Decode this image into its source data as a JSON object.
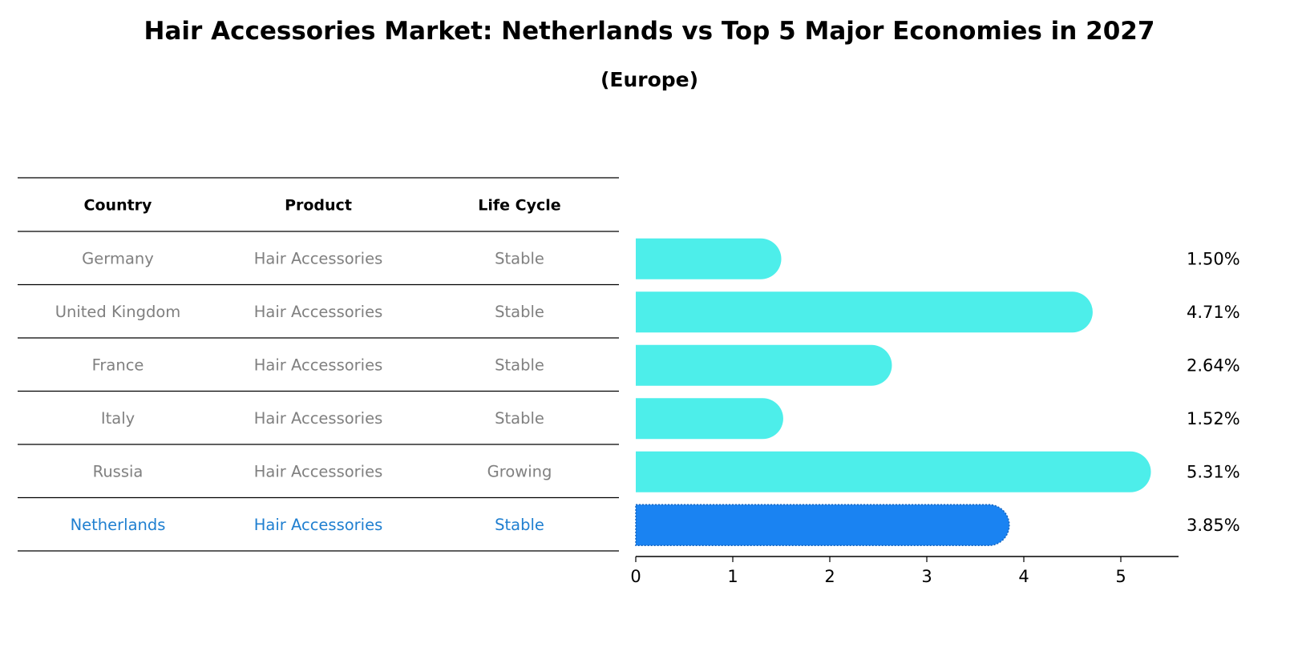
{
  "title": "Hair Accessories Market: Netherlands vs Top 5 Major Economies in 2027",
  "subtitle": "(Europe)",
  "table": {
    "headers": [
      "Country",
      "Product",
      "Life Cycle"
    ],
    "rows": [
      [
        "Germany",
        "Hair Accessories",
        "Stable"
      ],
      [
        "United Kingdom",
        "Hair Accessories",
        "Stable"
      ],
      [
        "France",
        "Hair Accessories",
        "Stable"
      ],
      [
        "Italy",
        "Hair Accessories",
        "Stable"
      ],
      [
        "Russia",
        "Hair Accessories",
        "Growing"
      ],
      [
        "Netherlands",
        "Hair Accessories",
        "Stable"
      ]
    ],
    "highlight_row": 5
  },
  "colors": {
    "bar": "#4DEEEA",
    "highlight_bar": "#1A83F2",
    "row_text": "#808080",
    "highlight_text": "#1F7FD0"
  },
  "chart_data": {
    "type": "bar",
    "orientation": "horizontal",
    "categories": [
      "Germany",
      "United Kingdom",
      "France",
      "Italy",
      "Russia",
      "Netherlands"
    ],
    "values": [
      1.5,
      4.71,
      2.64,
      1.52,
      5.31,
      3.85
    ],
    "value_labels": [
      "1.50%",
      "4.71%",
      "2.64%",
      "1.52%",
      "5.31%",
      "3.85%"
    ],
    "xlim": [
      0,
      5.6
    ],
    "xticks": [
      0,
      1,
      2,
      3,
      4,
      5
    ],
    "grid": false,
    "highlight": "Netherlands"
  }
}
